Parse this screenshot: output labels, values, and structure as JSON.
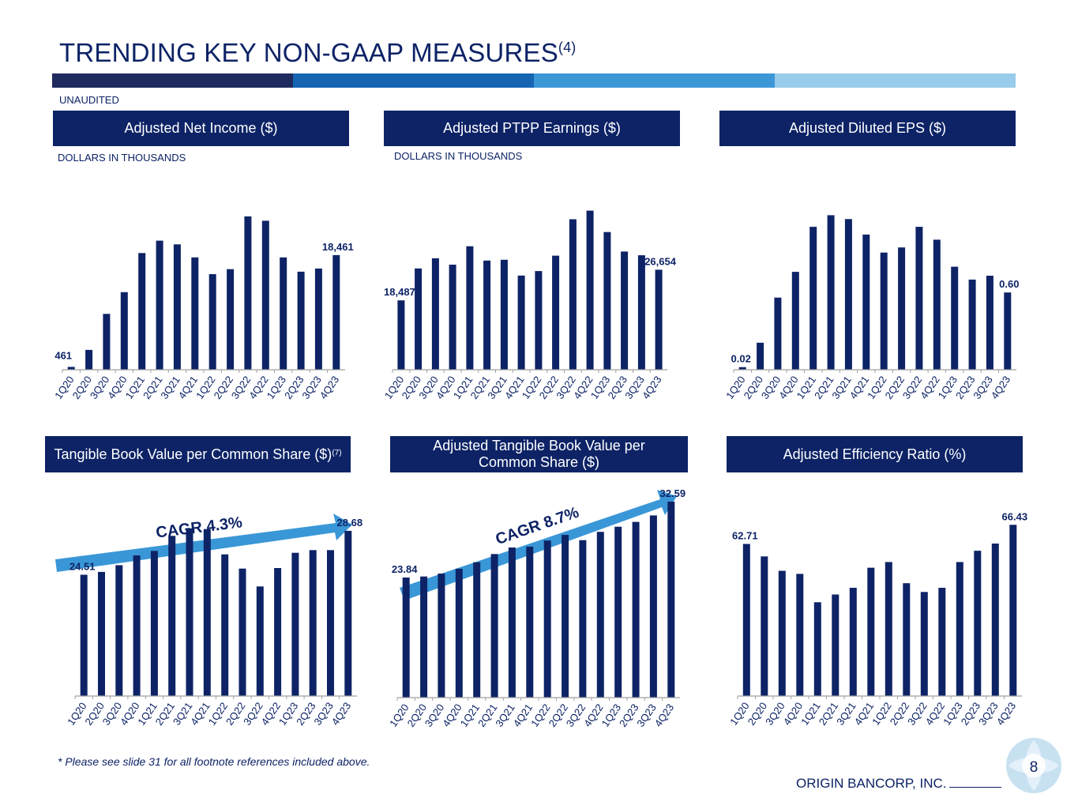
{
  "page": {
    "title": "TRENDING KEY NON-GAAP MEASURES",
    "title_sup": "(4)",
    "unaudited": "UNAUDITED",
    "footnote": "* Please see slide 31 for all footnote references included above.",
    "company": "ORIGIN BANCORP, INC.",
    "page_number": "8",
    "colors": {
      "navy": "#0d2366",
      "band": [
        "#1f2a5e",
        "#1565b3",
        "#3c97d6",
        "#99cbea"
      ],
      "arrow": "#3a97d7"
    }
  },
  "panels": {
    "p1": {
      "header": "Adjusted Net Income ($)",
      "note": "DOLLARS IN THOUSANDS"
    },
    "p2": {
      "header": "Adjusted PTPP Earnings ($)",
      "note": "DOLLARS IN THOUSANDS"
    },
    "p3": {
      "header": "Adjusted Diluted EPS ($)"
    },
    "p4": {
      "header": "Tangible Book Value per Common Share ($)",
      "header_sup": "(7)",
      "cagr": "CAGR 4.3%"
    },
    "p5": {
      "header_line1": "Adjusted Tangible Book Value per",
      "header_line2": "Common Share ($)",
      "cagr": "CAGR 8.7%"
    },
    "p6": {
      "header": "Adjusted Efficiency Ratio (%)"
    }
  },
  "chart_data": [
    {
      "id": "net-income",
      "type": "bar",
      "title": "Adjusted Net Income ($)",
      "categories": [
        "1Q20",
        "2Q20",
        "3Q20",
        "4Q20",
        "1Q21",
        "2Q21",
        "3Q21",
        "4Q21",
        "1Q22",
        "2Q22",
        "3Q22",
        "4Q22",
        "1Q23",
        "2Q23",
        "3Q23",
        "4Q23"
      ],
      "values": [
        461,
        3200,
        9000,
        12500,
        18800,
        20800,
        20200,
        18100,
        15400,
        16200,
        24700,
        24000,
        18100,
        15800,
        16300,
        18461
      ],
      "labels": [
        {
          "index": 0,
          "text": "461",
          "pos": "left"
        },
        {
          "index": 15,
          "text": "18,461",
          "pos": "above"
        }
      ],
      "ylim": [
        0,
        28000
      ]
    },
    {
      "id": "ptpp",
      "type": "bar",
      "title": "Adjusted PTPP Earnings ($)",
      "categories": [
        "1Q20",
        "2Q20",
        "3Q20",
        "4Q20",
        "1Q21",
        "2Q21",
        "3Q21",
        "4Q21",
        "1Q22",
        "2Q22",
        "3Q22",
        "4Q22",
        "1Q23",
        "2Q23",
        "3Q23",
        "4Q23"
      ],
      "values": [
        18487,
        27000,
        29700,
        28000,
        32900,
        29100,
        29300,
        25100,
        26300,
        30400,
        40100,
        42400,
        36700,
        31500,
        30500,
        26654
      ],
      "labels": [
        {
          "index": 0,
          "text": "18,487",
          "pos": "above"
        },
        {
          "index": 15,
          "text": "26,654",
          "pos": "above"
        }
      ],
      "ylim": [
        0,
        48000
      ]
    },
    {
      "id": "eps",
      "type": "bar",
      "title": "Adjusted Diluted EPS ($)",
      "categories": [
        "1Q20",
        "2Q20",
        "3Q20",
        "4Q20",
        "1Q21",
        "2Q21",
        "3Q21",
        "4Q21",
        "1Q22",
        "2Q22",
        "3Q22",
        "4Q22",
        "1Q23",
        "2Q23",
        "3Q23",
        "4Q23"
      ],
      "values": [
        0.02,
        0.21,
        0.56,
        0.76,
        1.11,
        1.2,
        1.17,
        1.05,
        0.91,
        0.95,
        1.11,
        1.01,
        0.8,
        0.7,
        0.73,
        0.6
      ],
      "labels": [
        {
          "index": 0,
          "text": "0.02",
          "pos": "above"
        },
        {
          "index": 15,
          "text": "0.60",
          "pos": "above"
        }
      ],
      "ylim": [
        0,
        1.35
      ]
    },
    {
      "id": "tbv",
      "type": "bar",
      "title": "Tangible Book Value per Common Share ($)",
      "categories": [
        "1Q20",
        "2Q20",
        "3Q20",
        "4Q20",
        "1Q21",
        "2Q21",
        "3Q21",
        "4Q21",
        "1Q22",
        "2Q22",
        "3Q22",
        "4Q22",
        "1Q23",
        "2Q23",
        "3Q23",
        "4Q23"
      ],
      "values": [
        24.51,
        24.78,
        25.42,
        26.35,
        26.78,
        28.2,
        28.92,
        28.85,
        26.45,
        25.1,
        23.4,
        25.15,
        26.6,
        26.85,
        26.85,
        28.68
      ],
      "labels": [
        {
          "index": 0,
          "text": "24.51",
          "pos": "above"
        },
        {
          "index": 15,
          "text": "28.68",
          "pos": "above"
        }
      ],
      "ylim": [
        13.0,
        35.5
      ]
    },
    {
      "id": "adj-tbv",
      "type": "bar",
      "title": "Adjusted Tangible Book Value per Common Share ($)",
      "categories": [
        "1Q20",
        "2Q20",
        "3Q20",
        "4Q20",
        "1Q21",
        "2Q21",
        "3Q21",
        "4Q21",
        "1Q22",
        "2Q22",
        "3Q22",
        "4Q22",
        "1Q23",
        "2Q23",
        "3Q23",
        "4Q23"
      ],
      "values": [
        23.84,
        23.96,
        24.3,
        24.85,
        25.6,
        26.55,
        27.3,
        27.4,
        28.1,
        28.75,
        28.15,
        29.1,
        29.7,
        30.25,
        31.0,
        32.59
      ],
      "labels": [
        {
          "index": 0,
          "text": "23.84",
          "pos": "above"
        },
        {
          "index": 15,
          "text": "32.59",
          "pos": "above"
        }
      ],
      "ylim": [
        10.0,
        37.5
      ]
    },
    {
      "id": "efficiency",
      "type": "bar",
      "title": "Adjusted Efficiency Ratio (%)",
      "categories": [
        "1Q20",
        "2Q20",
        "3Q20",
        "4Q20",
        "1Q21",
        "2Q21",
        "3Q21",
        "4Q21",
        "1Q22",
        "2Q22",
        "3Q22",
        "4Q22",
        "1Q23",
        "2Q23",
        "3Q23",
        "4Q23"
      ],
      "values": [
        62.71,
        60.3,
        57.5,
        56.9,
        51.4,
        52.9,
        54.2,
        58.1,
        59.2,
        55.1,
        53.4,
        54.2,
        59.2,
        61.4,
        62.8,
        66.43
      ],
      "labels": [
        {
          "index": 0,
          "text": "62.71",
          "pos": "above"
        },
        {
          "index": 15,
          "text": "66.43",
          "pos": "above"
        }
      ],
      "ylim": [
        33.2,
        70.0
      ]
    }
  ]
}
